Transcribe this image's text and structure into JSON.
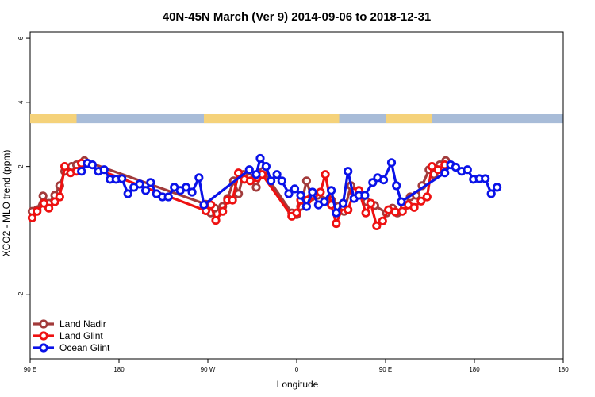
{
  "chart_data": {
    "type": "line",
    "title": "40N-45N March (Ver 9)   2014-09-06 to 2018-12-31",
    "xlabel": "Longitude",
    "ylabel": "XCO2 - MLO trend (ppm)",
    "xlim": [
      0,
      540
    ],
    "ylim": [
      -4,
      6.2
    ],
    "x_ticks": [
      {
        "value": 0,
        "label": "90 E"
      },
      {
        "value": 90,
        "label": "180"
      },
      {
        "value": 180,
        "label": "90 W"
      },
      {
        "value": 270,
        "label": "0"
      },
      {
        "value": 360,
        "label": "90 E"
      },
      {
        "value": 450,
        "label": "180"
      }
    ],
    "y_ticks": [
      {
        "value": -2,
        "label": "-2"
      },
      {
        "value": 2,
        "label": "2"
      },
      {
        "value": 4,
        "label": "4"
      },
      {
        "value": 6,
        "label": "6"
      }
    ],
    "grid": false,
    "legend_position": "bottom-left",
    "surface_strip": {
      "y_range": [
        3.35,
        3.65
      ],
      "colors": {
        "land": "#f5d27a",
        "ocean": "#a8bcd8"
      },
      "land_segments": [
        [
          0,
          47
        ],
        [
          176,
          313
        ],
        [
          360,
          407
        ]
      ]
    },
    "series": [
      {
        "name": "Land Nadir",
        "color": "#a23b3b",
        "points": [
          [
            2,
            0.6
          ],
          [
            7,
            0.65
          ],
          [
            13,
            1.08
          ],
          [
            19,
            0.85
          ],
          [
            25,
            1.1
          ],
          [
            30,
            1.4
          ],
          [
            35,
            1.85
          ],
          [
            42,
            2.0
          ],
          [
            47,
            2.05
          ],
          [
            52,
            2.1
          ],
          [
            55,
            2.18
          ],
          [
            178,
            0.82
          ],
          [
            183,
            0.55
          ],
          [
            187,
            0.7
          ],
          [
            195,
            0.75
          ],
          [
            200,
            1.0
          ],
          [
            206,
            1.55
          ],
          [
            211,
            1.15
          ],
          [
            216,
            1.75
          ],
          [
            222,
            1.65
          ],
          [
            229,
            1.35
          ],
          [
            236,
            1.85
          ],
          [
            265,
            0.55
          ],
          [
            270,
            0.5
          ],
          [
            274,
            0.75
          ],
          [
            280,
            1.55
          ],
          [
            285,
            1.05
          ],
          [
            291,
            1.1
          ],
          [
            305,
            0.95
          ],
          [
            312,
            0.75
          ],
          [
            318,
            0.6
          ],
          [
            325,
            1.4
          ],
          [
            333,
            1.15
          ],
          [
            341,
            0.9
          ],
          [
            349,
            0.78
          ],
          [
            361,
            0.55
          ],
          [
            367,
            0.7
          ],
          [
            372,
            0.55
          ],
          [
            379,
            0.75
          ],
          [
            385,
            1.05
          ],
          [
            391,
            1.1
          ],
          [
            397,
            1.4
          ],
          [
            404,
            1.9
          ],
          [
            409,
            1.75
          ],
          [
            415,
            2.05
          ],
          [
            421,
            2.18
          ]
        ]
      },
      {
        "name": "Land Glint",
        "color": "#ee1111",
        "points": [
          [
            2,
            0.4
          ],
          [
            7,
            0.6
          ],
          [
            14,
            0.85
          ],
          [
            19,
            0.7
          ],
          [
            25,
            0.9
          ],
          [
            30,
            1.05
          ],
          [
            35,
            2.0
          ],
          [
            41,
            1.8
          ],
          [
            47,
            1.85
          ],
          [
            52,
            2.1
          ],
          [
            178,
            0.62
          ],
          [
            183,
            0.8
          ],
          [
            188,
            0.32
          ],
          [
            195,
            0.6
          ],
          [
            200,
            0.95
          ],
          [
            205,
            0.95
          ],
          [
            211,
            1.8
          ],
          [
            217,
            1.6
          ],
          [
            223,
            1.55
          ],
          [
            230,
            1.65
          ],
          [
            235,
            1.75
          ],
          [
            265,
            0.45
          ],
          [
            270,
            0.55
          ],
          [
            274,
            0.95
          ],
          [
            281,
            0.95
          ],
          [
            287,
            1.1
          ],
          [
            294,
            1.2
          ],
          [
            299,
            1.75
          ],
          [
            305,
            0.8
          ],
          [
            310,
            0.22
          ],
          [
            317,
            0.75
          ],
          [
            322,
            0.65
          ],
          [
            328,
            1.2
          ],
          [
            333,
            1.25
          ],
          [
            340,
            0.55
          ],
          [
            345,
            0.85
          ],
          [
            351,
            0.15
          ],
          [
            357,
            0.3
          ],
          [
            363,
            0.65
          ],
          [
            370,
            0.58
          ],
          [
            377,
            0.6
          ],
          [
            383,
            0.8
          ],
          [
            389,
            0.72
          ],
          [
            396,
            0.92
          ],
          [
            402,
            1.05
          ],
          [
            407,
            2.0
          ],
          [
            413,
            1.9
          ],
          [
            420,
            2.05
          ]
        ]
      },
      {
        "name": "Ocean Glint",
        "color": "#0a12e8",
        "points": [
          [
            52,
            1.85
          ],
          [
            58,
            2.1
          ],
          [
            63,
            2.05
          ],
          [
            69,
            1.85
          ],
          [
            75,
            1.9
          ],
          [
            81,
            1.6
          ],
          [
            87,
            1.6
          ],
          [
            93,
            1.62
          ],
          [
            99,
            1.15
          ],
          [
            105,
            1.35
          ],
          [
            111,
            1.45
          ],
          [
            117,
            1.25
          ],
          [
            122,
            1.5
          ],
          [
            128,
            1.15
          ],
          [
            134,
            1.05
          ],
          [
            140,
            1.05
          ],
          [
            146,
            1.35
          ],
          [
            152,
            1.25
          ],
          [
            158,
            1.35
          ],
          [
            164,
            1.2
          ],
          [
            171,
            1.65
          ],
          [
            176,
            0.8
          ],
          [
            222,
            1.9
          ],
          [
            229,
            1.75
          ],
          [
            233,
            2.25
          ],
          [
            239,
            2.0
          ],
          [
            244,
            1.55
          ],
          [
            250,
            1.75
          ],
          [
            255,
            1.55
          ],
          [
            262,
            1.15
          ],
          [
            268,
            1.3
          ],
          [
            274,
            1.1
          ],
          [
            280,
            0.75
          ],
          [
            286,
            1.2
          ],
          [
            292,
            0.8
          ],
          [
            298,
            0.9
          ],
          [
            305,
            1.25
          ],
          [
            310,
            0.55
          ],
          [
            317,
            0.85
          ],
          [
            322,
            1.85
          ],
          [
            328,
            1.0
          ],
          [
            333,
            1.1
          ],
          [
            339,
            1.1
          ],
          [
            347,
            1.5
          ],
          [
            352,
            1.65
          ],
          [
            358,
            1.58
          ],
          [
            366,
            2.12
          ],
          [
            371,
            1.4
          ],
          [
            376,
            0.9
          ],
          [
            420,
            1.8
          ],
          [
            426,
            2.05
          ],
          [
            431,
            1.98
          ],
          [
            437,
            1.85
          ],
          [
            443,
            1.9
          ],
          [
            449,
            1.6
          ],
          [
            455,
            1.62
          ],
          [
            461,
            1.62
          ],
          [
            467,
            1.15
          ],
          [
            473,
            1.35
          ]
        ]
      }
    ]
  }
}
